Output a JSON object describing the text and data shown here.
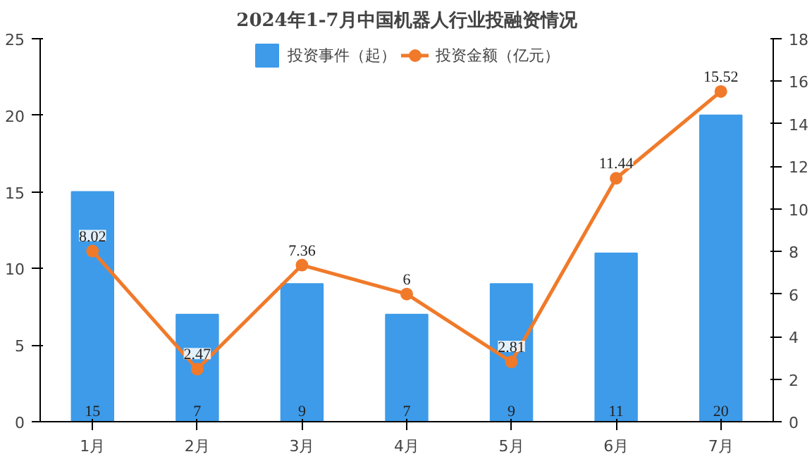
{
  "chart_data": {
    "type": "bar",
    "title": "2024年1-7月中国机器人行业投融资情况",
    "categories": [
      "1月",
      "2月",
      "3月",
      "4月",
      "5月",
      "6月",
      "7月"
    ],
    "series": [
      {
        "name": "投资事件（起）",
        "color": "#3d9be9",
        "values": [
          15,
          7,
          9,
          7,
          9,
          11,
          20
        ]
      },
      {
        "name": "投资金额（亿元）",
        "type": "line",
        "axis": "y2",
        "color": "#f07a2a",
        "marker": "circle",
        "values": [
          8.02,
          2.47,
          7.36,
          6,
          2.81,
          11.44,
          15.52
        ]
      }
    ],
    "ylim": [
      0,
      25
    ],
    "yticks": [
      0,
      5,
      10,
      15,
      20,
      25
    ],
    "y2lim": [
      0,
      18
    ],
    "y2ticks": [
      0,
      2,
      4,
      6,
      8,
      10,
      12,
      14,
      16,
      18
    ],
    "data_labels": true,
    "legend": "top",
    "grid": false
  }
}
